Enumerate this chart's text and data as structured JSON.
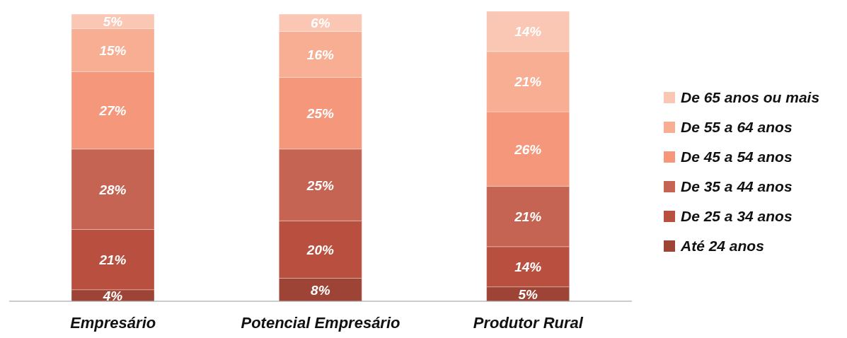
{
  "chart_data": {
    "type": "bar",
    "stacked": true,
    "legend": "right",
    "categories": [
      "Empresário",
      "Potencial Empresário",
      "Produtor Rural"
    ],
    "series": [
      {
        "name": "Até 24 anos",
        "color": "#9e4436",
        "values": [
          4,
          8,
          5
        ],
        "value_labels": [
          "4%",
          "8%",
          "5%"
        ]
      },
      {
        "name": "De 25 a 34 anos",
        "color": "#b84f3f",
        "values": [
          21,
          20,
          14
        ],
        "value_labels": [
          "21%",
          "20%",
          "14%"
        ]
      },
      {
        "name": "De 35 a 44 anos",
        "color": "#c56453",
        "values": [
          28,
          25,
          21
        ],
        "value_labels": [
          "28%",
          "25%",
          "21%"
        ]
      },
      {
        "name": "De 45 a 54 anos",
        "color": "#f4977b",
        "values": [
          27,
          25,
          26
        ],
        "value_labels": [
          "27%",
          "25%",
          "26%"
        ]
      },
      {
        "name": "De 55 a 64 anos",
        "color": "#f7ae92",
        "values": [
          15,
          16,
          21
        ],
        "value_labels": [
          "15%",
          "16%",
          "21%"
        ]
      },
      {
        "name": "De 65 anos ou mais",
        "color": "#f9c7b4",
        "values": [
          5,
          6,
          14
        ],
        "value_labels": [
          "5%",
          "6%",
          "14%"
        ]
      }
    ]
  }
}
